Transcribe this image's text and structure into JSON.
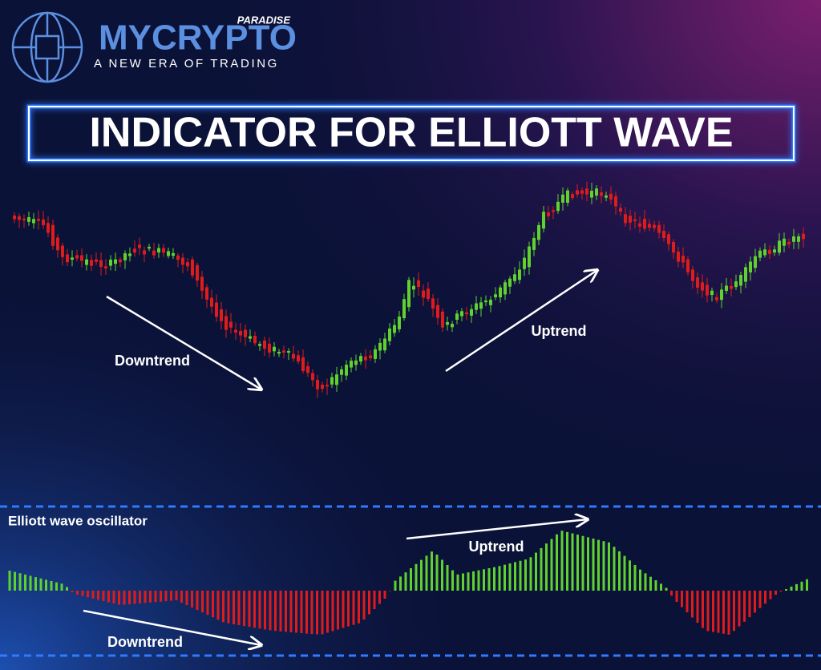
{
  "logo": {
    "brand": "MYCRYPTO",
    "tag": "PARADISE",
    "tagline": "A NEW ERA OF TRADING"
  },
  "title": "INDICATOR FOR ELLIOTT WAVE",
  "price_panel": {
    "downtrend": "Downtrend",
    "uptrend": "Uptrend"
  },
  "oscillator_panel": {
    "label": "Elliott wave oscillator",
    "uptrend": "Uptrend",
    "downtrend": "Downtrend"
  }
}
